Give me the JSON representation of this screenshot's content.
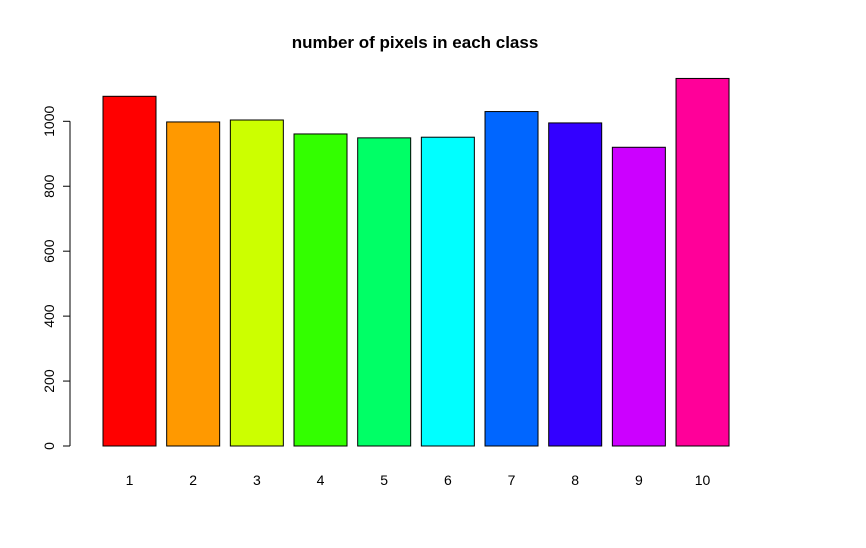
{
  "chart_data": {
    "type": "bar",
    "title": "number of pixels in each class",
    "xlabel": "",
    "ylabel": "",
    "categories": [
      "1",
      "2",
      "3",
      "4",
      "5",
      "6",
      "7",
      "8",
      "9",
      "10"
    ],
    "values": [
      1077,
      998,
      1004,
      961,
      949,
      951,
      1030,
      995,
      920,
      1132
    ],
    "colors": [
      "#FF0000",
      "#FF9900",
      "#CCFF00",
      "#33FF00",
      "#00FF66",
      "#00FFFF",
      "#0066FF",
      "#3300FF",
      "#CC00FF",
      "#FF0099"
    ],
    "yticks": [
      0,
      200,
      400,
      600,
      800,
      1000
    ],
    "ylim": [
      0,
      1132
    ],
    "grid": false,
    "legend": "none"
  }
}
